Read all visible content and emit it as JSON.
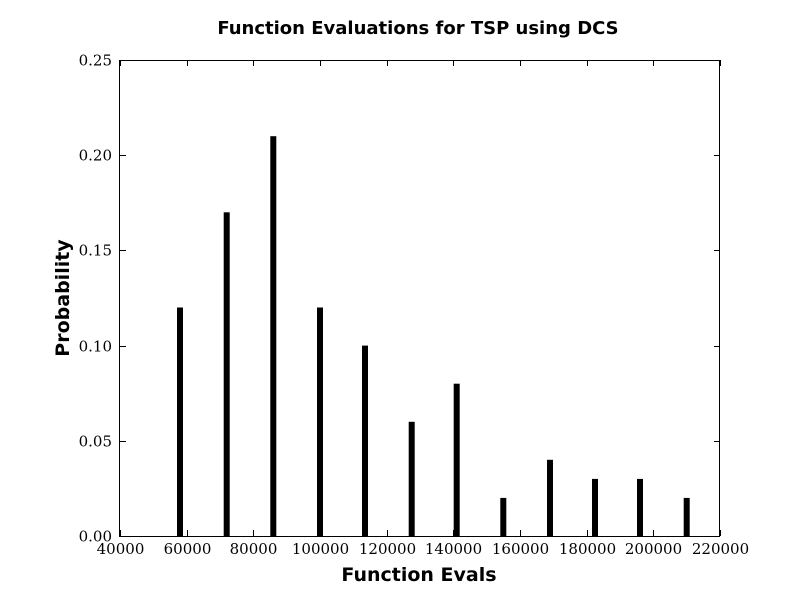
{
  "chart_data": {
    "type": "bar",
    "title": "Function Evaluations for TSP using DCS",
    "xlabel": "Function Evals",
    "ylabel": "Probability",
    "xlim": [
      40000,
      220000
    ],
    "ylim": [
      0,
      0.25
    ],
    "xticks": [
      40000,
      60000,
      80000,
      100000,
      120000,
      140000,
      160000,
      180000,
      200000,
      220000
    ],
    "yticks": [
      0.0,
      0.05,
      0.1,
      0.15,
      0.2,
      0.25
    ],
    "ytick_labels": [
      "0.00",
      "0.05",
      "0.10",
      "0.15",
      "0.20",
      "0.25"
    ],
    "x": [
      58000,
      72000,
      86000,
      100000,
      113500,
      127500,
      141000,
      155000,
      169000,
      182500,
      196000,
      210000
    ],
    "values": [
      0.12,
      0.17,
      0.21,
      0.12,
      0.1,
      0.06,
      0.08,
      0.02,
      0.04,
      0.03,
      0.03,
      0.02
    ],
    "bar_color": "#000000",
    "grid": false
  }
}
